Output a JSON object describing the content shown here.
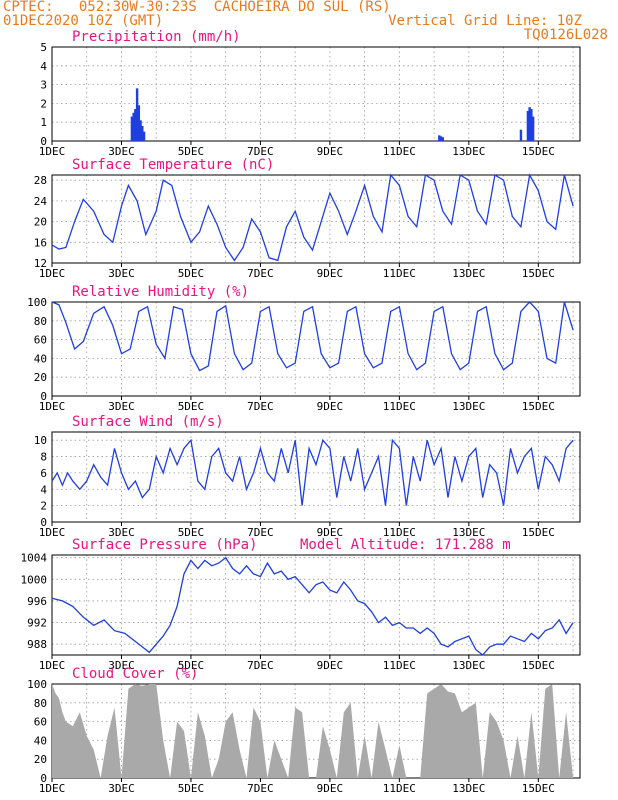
{
  "header": {
    "line1_left": "CPTEC:   052:30W-30:23S  CACHOEIRA DO SUL (RS)",
    "line2_left": "01DEC2020 10Z (GMT)",
    "line1_right": "Vertical Grid Line: 10Z",
    "line2_right": "TQ0126L028",
    "model_altitude": "Model Altitude: 171.288 m"
  },
  "colors": {
    "header": "#e87b1c",
    "panel_title": "#e8157e",
    "line": "#1f3fe0",
    "bar": "#1f3fe0",
    "cloud": "#a9a9a9"
  },
  "x_ticks": [
    "1DEC",
    "3DEC",
    "5DEC",
    "7DEC",
    "9DEC",
    "11DEC",
    "13DEC",
    "15DEC"
  ],
  "chart_data": [
    {
      "type": "bar",
      "title": "Precipitation (mm/h)",
      "ylim": [
        0,
        5
      ],
      "yticks": [
        0,
        1,
        2,
        3,
        4,
        5
      ],
      "x": [
        2.3,
        2.35,
        2.4,
        2.45,
        2.5,
        2.55,
        2.6,
        2.65,
        11.15,
        11.2,
        11.25,
        13.5,
        13.7,
        13.75,
        13.8,
        13.85
      ],
      "values": [
        1.3,
        1.5,
        1.7,
        2.8,
        1.9,
        1.1,
        0.8,
        0.5,
        0.3,
        0.25,
        0.2,
        0.6,
        1.6,
        1.8,
        1.7,
        1.3
      ]
    },
    {
      "type": "line",
      "title": "Surface Temperature (nC)",
      "ylim": [
        12,
        29
      ],
      "yticks": [
        12,
        16,
        20,
        24,
        28
      ],
      "x": [
        0,
        0.2,
        0.4,
        0.65,
        0.9,
        1.2,
        1.5,
        1.75,
        2.0,
        2.2,
        2.45,
        2.7,
        3.0,
        3.2,
        3.45,
        3.7,
        4.0,
        4.25,
        4.5,
        4.75,
        5.0,
        5.25,
        5.5,
        5.75,
        6.0,
        6.25,
        6.5,
        6.75,
        7.0,
        7.25,
        7.5,
        7.75,
        8.0,
        8.25,
        8.5,
        8.75,
        9.0,
        9.25,
        9.5,
        9.75,
        10.0,
        10.25,
        10.5,
        10.75,
        11.0,
        11.25,
        11.5,
        11.75,
        12.0,
        12.25,
        12.5,
        12.75,
        13.0,
        13.25,
        13.5,
        13.75,
        14.0,
        14.25,
        14.5,
        14.75,
        15.0
      ],
      "values": [
        15.5,
        14.7,
        15,
        20,
        24.3,
        22,
        17.5,
        16,
        23,
        27,
        24,
        17.5,
        22,
        28,
        27,
        21,
        16,
        18,
        23,
        19.5,
        15,
        12.5,
        15,
        20.5,
        18,
        13,
        12.5,
        19,
        22,
        17,
        14.5,
        20,
        25.5,
        22,
        17.5,
        22,
        27,
        21,
        18,
        29,
        27,
        21,
        19,
        29,
        28,
        22,
        19.5,
        29,
        28,
        22,
        19.5,
        29,
        28,
        21,
        19,
        29.5,
        26,
        20,
        18.5,
        29,
        23
      ]
    },
    {
      "type": "line",
      "title": "Relative Humidity (%)",
      "ylim": [
        0,
        100
      ],
      "yticks": [
        0,
        20,
        40,
        60,
        80,
        100
      ],
      "x": [
        0,
        0.2,
        0.4,
        0.65,
        0.9,
        1.2,
        1.5,
        1.75,
        2.0,
        2.25,
        2.5,
        2.75,
        3.0,
        3.25,
        3.5,
        3.75,
        4.0,
        4.25,
        4.5,
        4.75,
        5.0,
        5.25,
        5.5,
        5.75,
        6.0,
        6.25,
        6.5,
        6.75,
        7.0,
        7.25,
        7.5,
        7.75,
        8.0,
        8.25,
        8.5,
        8.75,
        9.0,
        9.25,
        9.5,
        9.75,
        10.0,
        10.25,
        10.5,
        10.75,
        11.0,
        11.25,
        11.5,
        11.75,
        12.0,
        12.25,
        12.5,
        12.75,
        13.0,
        13.25,
        13.5,
        13.75,
        14.0,
        14.25,
        14.5,
        14.75,
        15.0
      ],
      "values": [
        100,
        97,
        78,
        50,
        58,
        88,
        95,
        75,
        45,
        50,
        90,
        95,
        55,
        40,
        95,
        92,
        45,
        27,
        32,
        90,
        96,
        45,
        28,
        35,
        90,
        95,
        45,
        30,
        35,
        90,
        95,
        45,
        30,
        35,
        90,
        95,
        45,
        30,
        35,
        90,
        95,
        45,
        28,
        35,
        90,
        95,
        45,
        28,
        35,
        90,
        95,
        45,
        28,
        35,
        90,
        100,
        90,
        40,
        35,
        100,
        70
      ]
    },
    {
      "type": "line",
      "title": "Surface Wind (m/s)",
      "ylim": [
        0,
        11
      ],
      "yticks": [
        0,
        2,
        4,
        6,
        8,
        10
      ],
      "x": [
        0,
        0.15,
        0.3,
        0.45,
        0.6,
        0.8,
        1.0,
        1.2,
        1.4,
        1.6,
        1.8,
        2.0,
        2.2,
        2.4,
        2.6,
        2.8,
        3.0,
        3.2,
        3.4,
        3.6,
        3.8,
        4.0,
        4.2,
        4.4,
        4.6,
        4.8,
        5.0,
        5.2,
        5.4,
        5.6,
        5.8,
        6.0,
        6.2,
        6.4,
        6.6,
        6.8,
        7.0,
        7.2,
        7.4,
        7.6,
        7.8,
        8.0,
        8.2,
        8.4,
        8.6,
        8.8,
        9.0,
        9.2,
        9.4,
        9.6,
        9.8,
        10.0,
        10.2,
        10.4,
        10.6,
        10.8,
        11.0,
        11.2,
        11.4,
        11.6,
        11.8,
        12.0,
        12.2,
        12.4,
        12.6,
        12.8,
        13.0,
        13.2,
        13.4,
        13.6,
        13.8,
        14.0,
        14.2,
        14.4,
        14.6,
        14.8,
        15.0
      ],
      "values": [
        5,
        6,
        4.5,
        6,
        5,
        4,
        5,
        7,
        5.5,
        4.5,
        9,
        6,
        4,
        5,
        3,
        4,
        8,
        6,
        9,
        7,
        9,
        10,
        5,
        4,
        8,
        9,
        6,
        5,
        8,
        4,
        6,
        9,
        6,
        5,
        9,
        6,
        10,
        2,
        9,
        7,
        10,
        9,
        3,
        8,
        5,
        9,
        4,
        6,
        8,
        2,
        10,
        9,
        2,
        8,
        5,
        10,
        7,
        9,
        3,
        8,
        5,
        8,
        9,
        3,
        7,
        6,
        2,
        9,
        6,
        8,
        9,
        4,
        8,
        7,
        5,
        9,
        10
      ]
    },
    {
      "type": "line",
      "title": "Surface Pressure (hPa)",
      "ylim": [
        986,
        1004.5
      ],
      "yticks": [
        988,
        992,
        996,
        1000,
        1004
      ],
      "x": [
        0,
        0.3,
        0.6,
        0.9,
        1.2,
        1.5,
        1.8,
        2.1,
        2.4,
        2.6,
        2.8,
        3.0,
        3.2,
        3.4,
        3.6,
        3.8,
        4.0,
        4.2,
        4.4,
        4.6,
        4.8,
        5.0,
        5.2,
        5.4,
        5.6,
        5.8,
        6.0,
        6.2,
        6.4,
        6.6,
        6.8,
        7.0,
        7.2,
        7.4,
        7.6,
        7.8,
        8.0,
        8.2,
        8.4,
        8.6,
        8.8,
        9.0,
        9.2,
        9.4,
        9.6,
        9.8,
        10.0,
        10.2,
        10.4,
        10.6,
        10.8,
        11.0,
        11.2,
        11.4,
        11.6,
        11.8,
        12.0,
        12.2,
        12.4,
        12.6,
        12.8,
        13.0,
        13.2,
        13.4,
        13.6,
        13.8,
        14.0,
        14.2,
        14.4,
        14.6,
        14.8,
        15.0
      ],
      "values": [
        996.5,
        996,
        995,
        993,
        991.5,
        992.5,
        990.5,
        990,
        988.5,
        987.5,
        986.5,
        988,
        989.5,
        991.5,
        995,
        1001,
        1003.5,
        1002,
        1003.5,
        1002.5,
        1003,
        1004,
        1002,
        1001,
        1002.5,
        1001,
        1000.5,
        1003,
        1001,
        1001.5,
        1000,
        1000.5,
        999,
        997.5,
        999,
        999.5,
        998,
        997.5,
        999.5,
        998,
        996,
        995.5,
        994,
        992,
        993,
        991.5,
        992,
        991,
        991,
        990,
        991,
        990,
        988,
        987.5,
        988.5,
        989,
        989.5,
        987,
        986,
        987.5,
        988,
        988,
        989.5,
        989,
        988.5,
        990,
        989,
        990.5,
        991,
        992.5,
        990,
        992
      ]
    },
    {
      "type": "area",
      "title": "Cloud Cover (%)",
      "ylim": [
        0,
        100
      ],
      "yticks": [
        0,
        20,
        40,
        60,
        80,
        100
      ],
      "x": [
        0,
        0.1,
        0.2,
        0.3,
        0.4,
        0.6,
        0.8,
        1.0,
        1.2,
        1.4,
        1.6,
        1.8,
        2.0,
        2.2,
        2.4,
        2.6,
        2.8,
        3.0,
        3.2,
        3.4,
        3.6,
        3.8,
        4.0,
        4.2,
        4.4,
        4.6,
        4.8,
        5.0,
        5.2,
        5.4,
        5.6,
        5.8,
        6.0,
        6.2,
        6.4,
        6.6,
        6.8,
        7.0,
        7.2,
        7.4,
        7.6,
        7.8,
        8.0,
        8.2,
        8.4,
        8.6,
        8.8,
        9.0,
        9.2,
        9.4,
        9.6,
        9.8,
        10.0,
        10.2,
        10.4,
        10.6,
        10.8,
        11.0,
        11.2,
        11.4,
        11.6,
        11.8,
        12.0,
        12.2,
        12.4,
        12.6,
        12.8,
        13.0,
        13.2,
        13.4,
        13.6,
        13.8,
        14.0,
        14.2,
        14.4,
        14.6,
        14.8,
        15.0
      ],
      "values": [
        100,
        90,
        85,
        70,
        60,
        55,
        70,
        45,
        30,
        0,
        45,
        75,
        0,
        95,
        100,
        98,
        100,
        100,
        40,
        0,
        60,
        50,
        0,
        70,
        45,
        0,
        20,
        60,
        70,
        30,
        0,
        75,
        60,
        0,
        40,
        20,
        0,
        75,
        70,
        0,
        0,
        55,
        30,
        0,
        70,
        80,
        0,
        45,
        0,
        60,
        30,
        0,
        35,
        0,
        0,
        0,
        90,
        95,
        100,
        92,
        90,
        70,
        75,
        80,
        0,
        70,
        60,
        40,
        0,
        45,
        0,
        70,
        0,
        95,
        100,
        0,
        70,
        0
      ]
    }
  ]
}
